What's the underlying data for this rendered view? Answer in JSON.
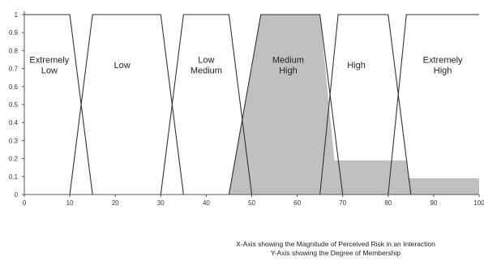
{
  "chart_data": {
    "type": "line",
    "xlim": [
      0,
      100
    ],
    "ylim": [
      0,
      1
    ],
    "x_ticks": [
      0,
      10,
      20,
      30,
      40,
      50,
      60,
      70,
      80,
      90,
      100
    ],
    "y_ticks": [
      0,
      0.1,
      0.2,
      0.3,
      0.4,
      0.5,
      0.6,
      0.7,
      0.8,
      0.9,
      1
    ],
    "grid": false,
    "legend": "none",
    "series": [
      {
        "name": "Extremely Low",
        "label_lines": [
          "Extremely",
          "Low"
        ],
        "label_x": 5.5,
        "label_y": 0.72,
        "points": [
          [
            0,
            1
          ],
          [
            10,
            1
          ],
          [
            15,
            0
          ]
        ]
      },
      {
        "name": "Low",
        "label_lines": [
          "Low"
        ],
        "label_x": 21.5,
        "label_y": 0.72,
        "points": [
          [
            10,
            0
          ],
          [
            15,
            1
          ],
          [
            30,
            1
          ],
          [
            35,
            0
          ]
        ]
      },
      {
        "name": "Low Medium",
        "label_lines": [
          "Low",
          "Medium"
        ],
        "label_x": 40,
        "label_y": 0.72,
        "points": [
          [
            30,
            0
          ],
          [
            35,
            1
          ],
          [
            45,
            1
          ],
          [
            50,
            0
          ]
        ]
      },
      {
        "name": "Medium High",
        "label_lines": [
          "Medium",
          "High"
        ],
        "label_x": 58,
        "label_y": 0.72,
        "points": [
          [
            45,
            0
          ],
          [
            52,
            1
          ],
          [
            65,
            1
          ],
          [
            70,
            0
          ]
        ]
      },
      {
        "name": "High",
        "label_lines": [
          "High"
        ],
        "label_x": 73,
        "label_y": 0.72,
        "points": [
          [
            65,
            0
          ],
          [
            69,
            1
          ],
          [
            80,
            1
          ],
          [
            85,
            0
          ]
        ]
      },
      {
        "name": "Extremely High",
        "label_lines": [
          "Extremely",
          "High"
        ],
        "label_x": 92,
        "label_y": 0.72,
        "points": [
          [
            80,
            0
          ],
          [
            84,
            1
          ],
          [
            100,
            1
          ]
        ]
      }
    ],
    "shaded_output": {
      "color": "#c0c0c0",
      "points": [
        [
          45,
          0
        ],
        [
          52,
          1
        ],
        [
          65,
          1
        ],
        [
          68.2,
          0.19
        ],
        [
          84,
          0.19
        ],
        [
          84.6,
          0.09
        ],
        [
          100,
          0.09
        ],
        [
          100,
          0
        ]
      ]
    },
    "colors": {
      "line": "#333333",
      "axis": "#555555",
      "fill": "#c0c0c0"
    }
  },
  "caption": {
    "line1": "X-Axis showing the Magnitude of Perceived Risk in an Interaction",
    "line2": "Y-Axis showing the Degree of Membership"
  }
}
